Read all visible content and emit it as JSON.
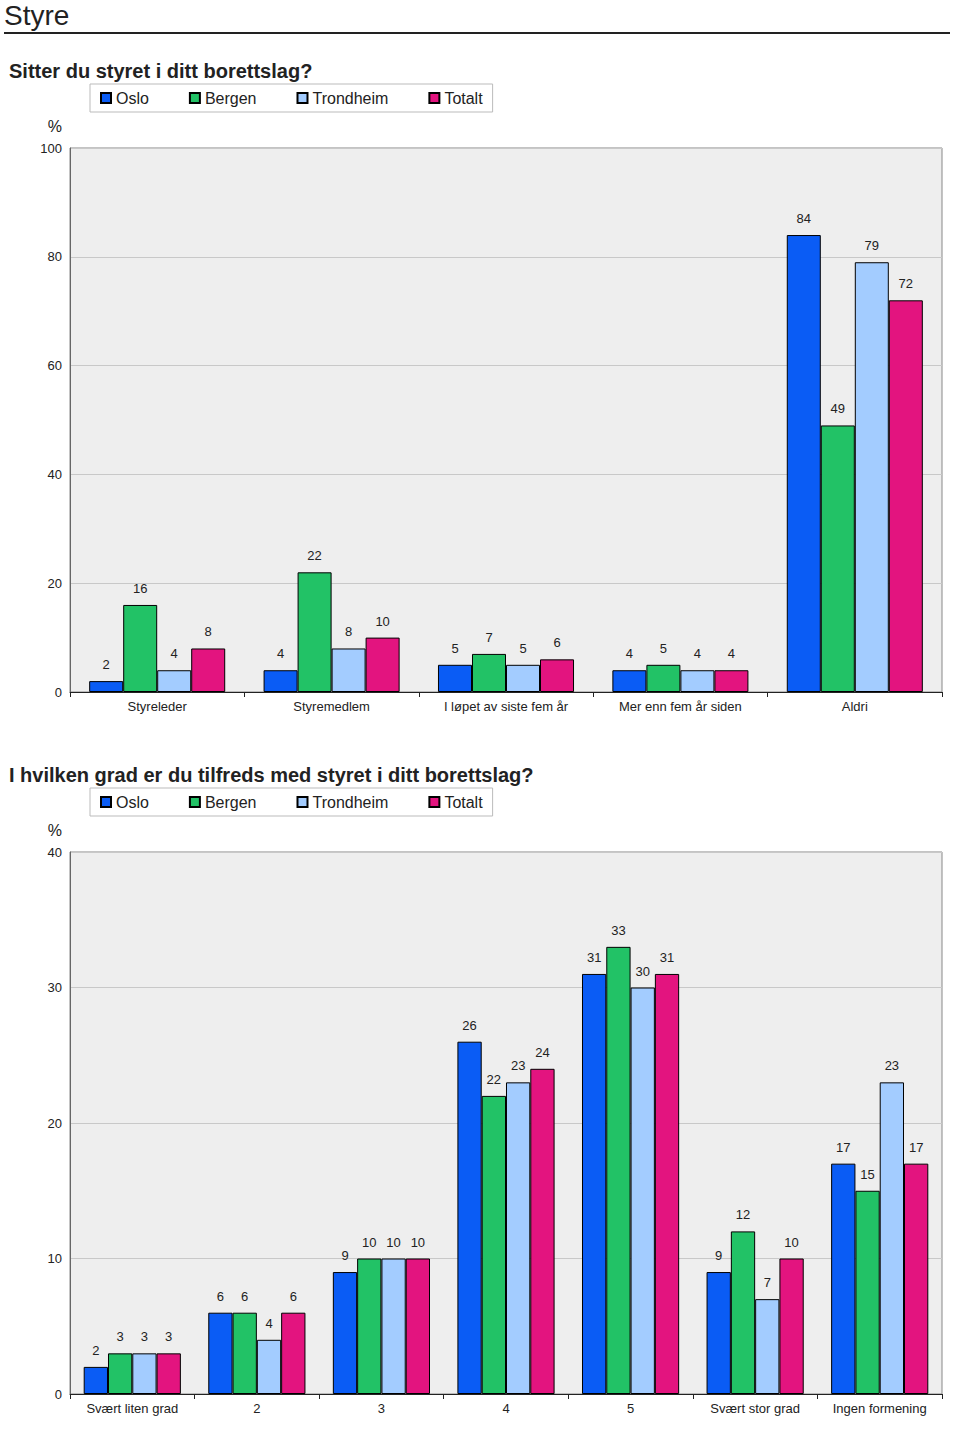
{
  "page_title": "Styre",
  "chart_data": [
    {
      "type": "bar",
      "title": "Sitter du styret i ditt borettslag?",
      "y_label": "%",
      "categories": [
        "Styreleder",
        "Styremedlem",
        "I løpet av siste fem år",
        "Mer enn fem år siden",
        "Aldri"
      ],
      "series": [
        {
          "name": "Oslo",
          "color": "#0a5cf5",
          "values": [
            2,
            4,
            5,
            4,
            84
          ]
        },
        {
          "name": "Bergen",
          "color": "#22c266",
          "values": [
            16,
            22,
            7,
            5,
            49
          ]
        },
        {
          "name": "Trondheim",
          "color": "#a3ccff",
          "values": [
            4,
            8,
            5,
            4,
            79
          ]
        },
        {
          "name": "Totalt",
          "color": "#e3147f",
          "values": [
            8,
            10,
            6,
            4,
            72
          ]
        }
      ],
      "ylim": [
        0,
        100
      ],
      "yticks": [
        0,
        20,
        40,
        60,
        80,
        100
      ],
      "grid": true,
      "legend": "top-left",
      "data_labels": true
    },
    {
      "type": "bar",
      "title": "I hvilken grad er du tilfreds med styret i ditt borettslag?",
      "y_label": "%",
      "categories": [
        "Svært liten grad",
        "2",
        "3",
        "4",
        "5",
        "Svært stor grad",
        "Ingen formening"
      ],
      "series": [
        {
          "name": "Oslo",
          "color": "#0a5cf5",
          "values": [
            2,
            6,
            9,
            26,
            31,
            9,
            17
          ]
        },
        {
          "name": "Bergen",
          "color": "#22c266",
          "values": [
            3,
            6,
            10,
            22,
            33,
            12,
            15
          ]
        },
        {
          "name": "Trondheim",
          "color": "#a3ccff",
          "values": [
            3,
            4,
            10,
            23,
            30,
            7,
            23
          ]
        },
        {
          "name": "Totalt",
          "color": "#e3147f",
          "values": [
            3,
            6,
            10,
            24,
            31,
            10,
            17
          ]
        }
      ],
      "ylim": [
        0,
        40
      ],
      "yticks": [
        0,
        10,
        20,
        30,
        40
      ],
      "grid": true,
      "legend": "top-left",
      "data_labels": true
    }
  ]
}
